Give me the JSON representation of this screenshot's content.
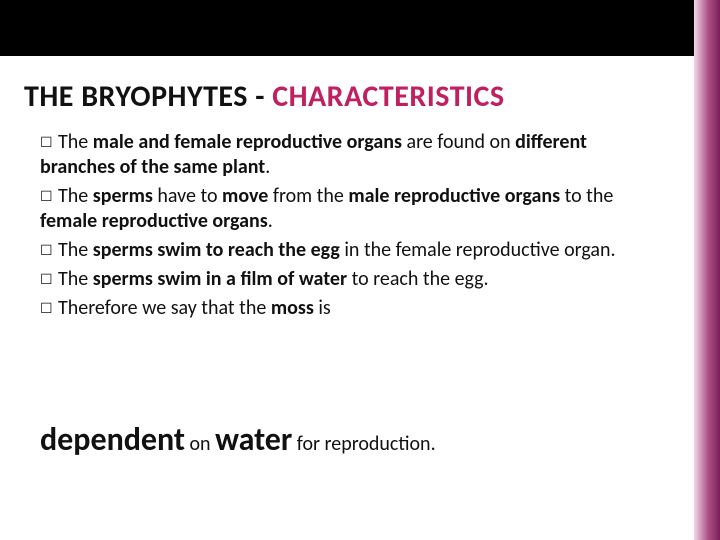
{
  "layout": {
    "slide_w": 720,
    "slide_h": 540,
    "topbar_h": 56,
    "topbar_color": "#000000",
    "accent_w": 26,
    "accent_gradient": [
      "#f3d9e6",
      "#ad4f86",
      "#7a1f58"
    ],
    "background_color": "#ffffff"
  },
  "title": {
    "part1": "THE BRYOPHYTES - ",
    "part2": "CHARACTERISTICS",
    "fontsize": 30,
    "color1": "#111111",
    "color2": "#c02060",
    "weight": 700
  },
  "bullets": {
    "glyph": "☐",
    "fontsize": 20,
    "items": [
      {
        "lead": "The ",
        "bold1": "male and female reproductive organs",
        "mid": " are found on ",
        "bold2": "different branches of the same plant",
        "tail": "."
      },
      {
        "lead": "The ",
        "bold1": "sperms",
        "mid": " have to ",
        "bold2": "move",
        "mid2": " from the ",
        "bold3": "male reproductive organs",
        "mid3": " to the ",
        "bold4": "female reproductive organs",
        "tail": "."
      },
      {
        "lead": "The ",
        "bold1": "sperms swim to reach the egg",
        "mid": " in the female reproductive organ.",
        "tail": ""
      },
      {
        "lead": "The ",
        "bold1": "sperms swim in a film of water",
        "mid": " to reach the egg.",
        "tail": ""
      },
      {
        "lead": "Therefore we say that the ",
        "bold1": "moss",
        "mid": " is",
        "tail": ""
      }
    ]
  },
  "conclusion": {
    "big1": "dependent",
    "norm1": " on ",
    "big2": "water",
    "norm2": " for reproduction.",
    "big_fontsize": 32,
    "norm_fontsize": 20
  }
}
